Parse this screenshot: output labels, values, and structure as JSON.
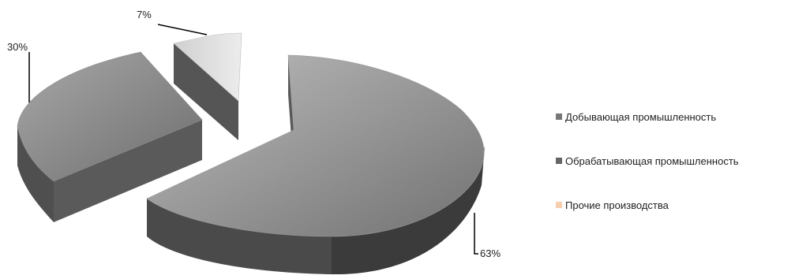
{
  "chart_data": {
    "type": "pie",
    "style": "3d-exploded",
    "title": "",
    "slices": [
      {
        "label": "Добывающая промышленность",
        "value": 63,
        "data_label": "63%",
        "color": "#8a8a8a"
      },
      {
        "label": "Обрабатывающая промышленность",
        "value": 30,
        "data_label": "30%",
        "color": "#6e6e6e"
      },
      {
        "label": "Прочие производства",
        "value": 7,
        "data_label": "7%",
        "color": "#d6d6d6"
      }
    ],
    "legend": {
      "position": "right",
      "items": [
        {
          "label": "Добывающая промышленность",
          "color": "#777777"
        },
        {
          "label": "Обрабатывающая промышленность",
          "color": "#666666"
        },
        {
          "label": "Прочие производства",
          "color": "#f6cfae"
        }
      ]
    }
  }
}
